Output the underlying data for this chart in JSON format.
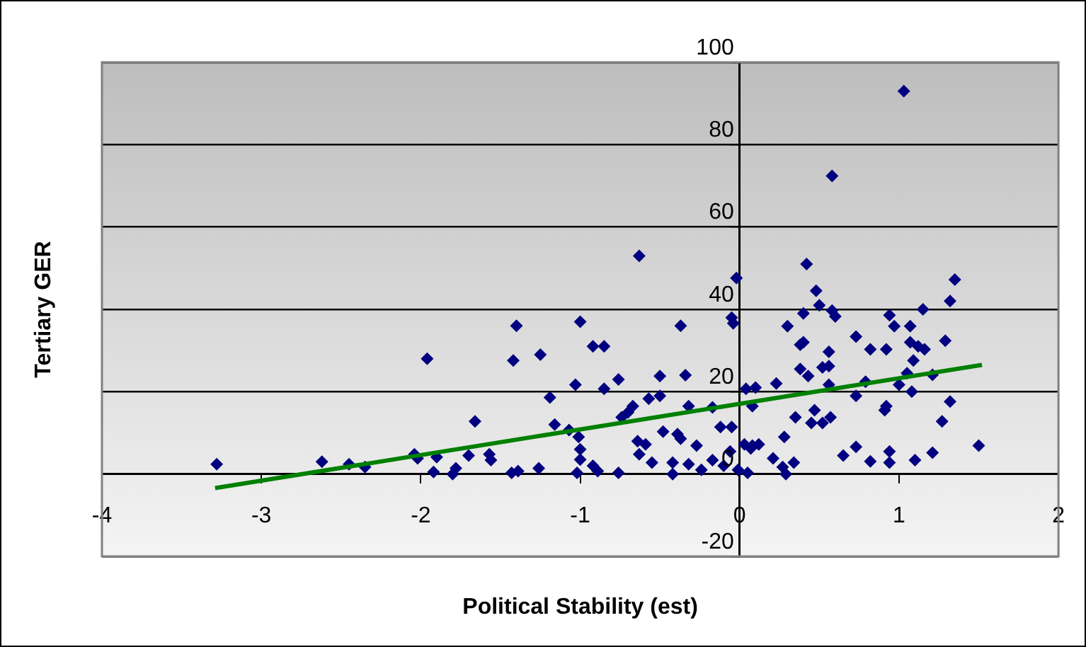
{
  "chart_data": {
    "type": "scatter",
    "xlabel": "Political Stability (est)",
    "ylabel": "Tertiary GER",
    "xlim": [
      -4,
      2
    ],
    "xticks": [
      -4,
      -3,
      -2,
      -1,
      0,
      1,
      2
    ],
    "ylim": [
      -20,
      100
    ],
    "yticks": [
      -20,
      0,
      20,
      40,
      60,
      80,
      100
    ],
    "grid": "y",
    "marker": "diamond",
    "legend": false,
    "series": [
      {
        "type": "scatter",
        "color": "#000080",
        "x": [
          -3.28,
          -2.62,
          -2.45,
          -2.35,
          -2.04,
          -2.02,
          -1.96,
          -1.9,
          -1.92,
          -1.78,
          -1.8,
          -1.66,
          -1.7,
          -1.57,
          -1.56,
          -1.42,
          -1.4,
          -1.43,
          -1.39,
          -1.25,
          -1.19,
          -1.16,
          -1.26,
          -1.0,
          -1.03,
          -0.92,
          -0.85,
          -0.85,
          -0.76,
          -1.0,
          -1.01,
          -1.0,
          -1.02,
          -0.92,
          -0.89,
          -0.76,
          -1.07,
          -0.63,
          -0.67,
          -0.74,
          -0.7,
          -0.64,
          -0.59,
          -0.63,
          -0.55,
          -0.57,
          -0.5,
          -0.5,
          -0.48,
          -0.39,
          -0.37,
          -0.37,
          -0.34,
          -0.32,
          -0.27,
          -0.42,
          -0.42,
          -0.32,
          -0.24,
          -0.17,
          -0.12,
          -0.1,
          -0.06,
          -0.05,
          -0.05,
          -0.04,
          -0.02,
          -0.01,
          0.03,
          0.04,
          0.05,
          0.1,
          0.08,
          0.08,
          0.12,
          -0.17,
          0.42,
          0.48,
          0.5,
          0.4,
          0.58,
          0.6,
          0.3,
          0.38,
          0.4,
          0.56,
          0.56,
          0.52,
          0.38,
          0.43,
          0.23,
          0.56,
          0.73,
          0.82,
          0.92,
          0.94,
          0.97,
          1.07,
          1.15,
          1.35,
          1.32,
          1.29,
          1.07,
          1.12,
          1.16,
          1.09,
          1.05,
          1.21,
          1.0,
          0.79,
          0.73,
          0.92,
          0.91,
          1.08,
          1.32,
          1.27,
          0.35,
          0.47,
          0.45,
          0.52,
          0.57,
          0.28,
          0.07,
          0.21,
          0.34,
          0.27,
          0.29,
          0.65,
          0.73,
          0.82,
          0.94,
          0.94,
          1.1,
          1.21,
          1.5,
          1.03,
          0.58
        ],
        "values": [
          2.4,
          3,
          2.4,
          1.7,
          4.8,
          3.8,
          28,
          4.1,
          0.5,
          1.4,
          0,
          12.8,
          4.5,
          4.8,
          3.4,
          27.6,
          36,
          0.3,
          0.7,
          29,
          18.6,
          12,
          1.4,
          37,
          21.7,
          31,
          31,
          20.7,
          23,
          6,
          9,
          3.5,
          0.3,
          2,
          0.7,
          0.3,
          10.7,
          53,
          16.5,
          13.8,
          15,
          8,
          7.2,
          4.8,
          2.8,
          18.3,
          19,
          23.8,
          10.3,
          9.7,
          8.6,
          36,
          24,
          16.5,
          6.9,
          2.8,
          0,
          2.4,
          1,
          3.4,
          11.4,
          2,
          5.5,
          11.4,
          38,
          36.6,
          47.6,
          1,
          7.2,
          20.7,
          0.3,
          21,
          16.5,
          6.9,
          7.2,
          16.2,
          51,
          44.5,
          41,
          39,
          39.7,
          38.3,
          35.9,
          31.4,
          32,
          29.7,
          26.2,
          25.9,
          25.5,
          23.8,
          22,
          21.7,
          33.4,
          30.3,
          30.3,
          38.6,
          35.9,
          35.9,
          40,
          47.2,
          42,
          32.4,
          32,
          31,
          30.3,
          27.6,
          24.5,
          24.1,
          21.7,
          22.4,
          19,
          16.5,
          15.5,
          20,
          17.6,
          12.8,
          13.8,
          15.5,
          12.4,
          12.4,
          13.8,
          9,
          6.2,
          3.8,
          2.8,
          1.7,
          0,
          4.5,
          6.6,
          3.1,
          5.5,
          2.8,
          3.4,
          5.2,
          6.9,
          93,
          72.4
        ]
      },
      {
        "type": "line",
        "color": "#008000",
        "marker": "none",
        "x": [
          -3.29,
          1.52
        ],
        "values": [
          -3.4,
          26.5
        ]
      }
    ]
  }
}
